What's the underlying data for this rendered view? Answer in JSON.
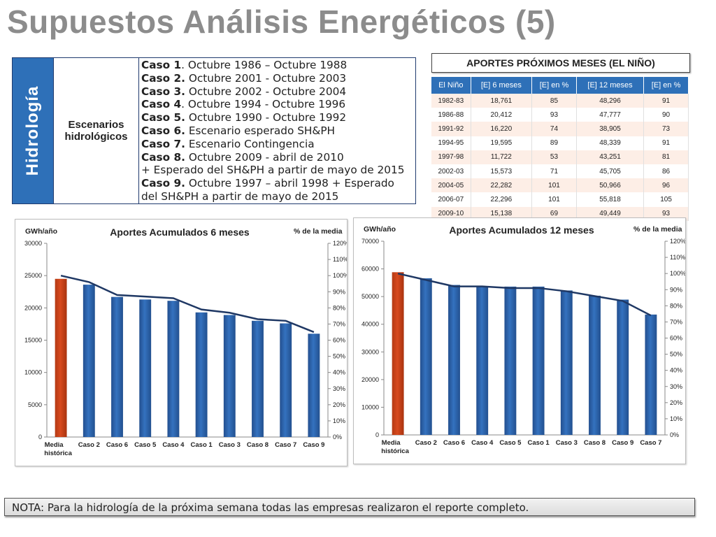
{
  "title": "Supuestos Análisis Energéticos (5)",
  "hydrology": {
    "side_label": "Hidrología",
    "scenario_label": "Escenarios hidrológicos",
    "cases": [
      {
        "bold": "Caso 1",
        "text": ". Octubre 1986 – Octubre 1988"
      },
      {
        "bold": "Caso 2.",
        "text": " Octubre 2001 - Octubre 2003"
      },
      {
        "bold": "Caso 3.",
        "text": " Octubre 2002 - Octubre 2004"
      },
      {
        "bold": "Caso 4",
        "text": ". Octubre 1994 - Octubre 1996"
      },
      {
        "bold": "Caso 5.",
        "text": " Octubre 1990 - Octubre 1992"
      },
      {
        "bold": "Caso 6.",
        "text": " Escenario esperado SH&PH"
      },
      {
        "bold": "Caso 7.",
        "text": " Escenario Contingencia"
      },
      {
        "bold": "Caso 8.",
        "text": " Octubre 2009 - abril de 2010"
      },
      {
        "bold": "",
        "text": "+ Esperado del SH&PH a partir de mayo de 2015"
      },
      {
        "bold": "Caso 9.",
        "text": " Octubre 1997 – abril 1998 + Esperado"
      },
      {
        "bold": "",
        "text": "del SH&PH a partir de mayo de 2015"
      }
    ]
  },
  "nino": {
    "title": "APORTES PRÓXIMOS MESES (EL NIÑO)",
    "headers": [
      "El Niño",
      "[E] 6 meses",
      "[E] en %",
      "[E] 12 meses",
      "[E] en %"
    ],
    "rows": [
      [
        "1982-83",
        "18,761",
        "85",
        "48,296",
        "91"
      ],
      [
        "1986-88",
        "20,412",
        "93",
        "47,777",
        "90"
      ],
      [
        "1991-92",
        "16,220",
        "74",
        "38,905",
        "73"
      ],
      [
        "1994-95",
        "19,595",
        "89",
        "48,339",
        "91"
      ],
      [
        "1997-98",
        "11,722",
        "53",
        "43,251",
        "81"
      ],
      [
        "2002-03",
        "15,573",
        "71",
        "45,705",
        "86"
      ],
      [
        "2004-05",
        "22,282",
        "101",
        "50,966",
        "96"
      ],
      [
        "2006-07",
        "22,296",
        "101",
        "55,818",
        "105"
      ],
      [
        "2009-10",
        "15,138",
        "69",
        "49,449",
        "93"
      ]
    ]
  },
  "colors": {
    "bar": "#3472bf",
    "highlight": "#d84a1e",
    "line": "#1f3864",
    "header": "#2e70b8"
  },
  "chart_data": [
    {
      "type": "bar",
      "title": "Aportes Acumulados 6 meses",
      "ylabel": "GWh/año",
      "y2label": "% de la media",
      "categories": [
        "Media histórica",
        "Caso 2",
        "Caso 6",
        "Caso 5",
        "Caso 4",
        "Caso 1",
        "Caso 3",
        "Caso 8",
        "Caso 7",
        "Caso 9"
      ],
      "values": [
        24500,
        23600,
        21700,
        21300,
        21100,
        19300,
        18900,
        18000,
        17600,
        16000
      ],
      "line_pct": [
        100,
        96,
        88,
        87,
        86,
        79,
        77,
        73,
        72,
        65
      ],
      "ylim": [
        0,
        30000
      ],
      "yticks": [
        0,
        5000,
        10000,
        15000,
        20000,
        25000,
        30000
      ],
      "y2lim": [
        0,
        120
      ],
      "y2ticks": [
        "0%",
        "10%",
        "20%",
        "30%",
        "40%",
        "50%",
        "60%",
        "70%",
        "80%",
        "90%",
        "100%",
        "110%",
        "120%"
      ],
      "grid": false
    },
    {
      "type": "bar",
      "title": "Aportes Acumulados 12 meses",
      "ylabel": "GWh/año",
      "y2label": "% de la media",
      "categories": [
        "Media histórica",
        "Caso 2",
        "Caso 6",
        "Caso 4",
        "Caso 5",
        "Caso 1",
        "Caso 3",
        "Caso 8",
        "Caso 9",
        "Caso 7"
      ],
      "values": [
        58800,
        56600,
        54200,
        53800,
        53600,
        53600,
        52200,
        50300,
        48900,
        43500
      ],
      "line_pct": [
        100,
        96,
        92,
        92,
        91,
        91,
        89,
        86,
        83,
        74
      ],
      "ylim": [
        0,
        70000
      ],
      "yticks": [
        0,
        10000,
        20000,
        30000,
        40000,
        50000,
        60000,
        70000
      ],
      "y2lim": [
        0,
        120
      ],
      "y2ticks": [
        "0%",
        "10%",
        "20%",
        "30%",
        "40%",
        "50%",
        "60%",
        "70%",
        "80%",
        "90%",
        "100%",
        "110%",
        "120%"
      ],
      "grid": false
    }
  ],
  "note": "NOTA: Para la hidrología de la próxima semana todas las empresas realizaron el reporte completo."
}
